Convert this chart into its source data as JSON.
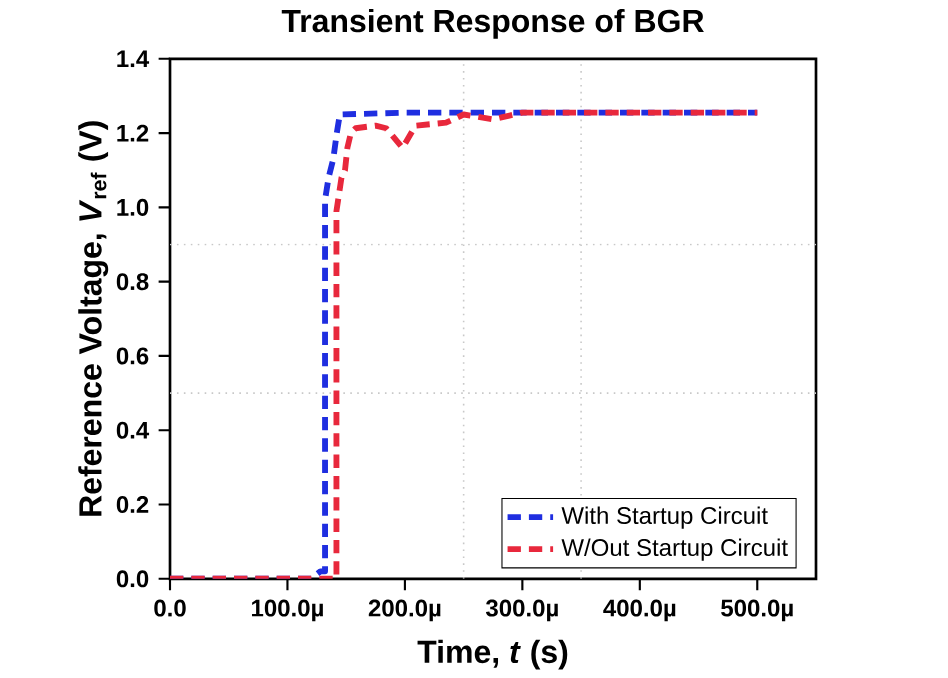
{
  "chart_data": {
    "type": "line",
    "title": "Transient Response of BGR",
    "xlabel": "Time, *t* (s)",
    "ylabel": "Reference Voltage, *V*$_{ref}$ (V)",
    "xlim": [
      0,
      550
    ],
    "ylim": [
      0,
      1.4
    ],
    "xticks": [
      {
        "value": 0,
        "label": "0.0"
      },
      {
        "value": 100,
        "label": "100.0µ"
      },
      {
        "value": 200,
        "label": "200.0µ"
      },
      {
        "value": 300,
        "label": "300.0µ"
      },
      {
        "value": 400,
        "label": "400.0µ"
      },
      {
        "value": 500,
        "label": "500.0µ"
      }
    ],
    "yticks": [
      {
        "value": 0,
        "label": "0.0"
      },
      {
        "value": 0.2,
        "label": "0.2"
      },
      {
        "value": 0.4,
        "label": "0.4"
      },
      {
        "value": 0.6,
        "label": "0.6"
      },
      {
        "value": 0.8,
        "label": "0.8"
      },
      {
        "value": 1.0,
        "label": "1.0"
      },
      {
        "value": 1.2,
        "label": "1.2"
      },
      {
        "value": 1.4,
        "label": "1.4"
      }
    ],
    "grid": false,
    "legend": "bottom right",
    "line_style": "dashed",
    "marker": "none",
    "ref_lines": [
      {
        "axis": "x",
        "value": 250,
        "label": null,
        "color": "#c8c8c8",
        "line_style": "dotted"
      },
      {
        "axis": "x",
        "value": 350,
        "label": null,
        "color": "#c8c8c8",
        "line_style": "dotted"
      },
      {
        "axis": "y",
        "value": 0.9,
        "label": null,
        "color": "#c8c8c8",
        "line_style": "dotted"
      },
      {
        "axis": "y",
        "value": 0.5,
        "label": null,
        "color": "#c8c8c8",
        "line_style": "dotted"
      }
    ],
    "series": [
      {
        "name": "With Startup Circuit",
        "color": "#1f2ee0",
        "x": [
          0,
          120,
          128,
          132,
          132,
          135,
          139,
          142,
          144.6,
          200,
          300,
          400,
          500
        ],
        "values": [
          0,
          0,
          0.02,
          0.02,
          1.02,
          1.08,
          1.13,
          1.2,
          1.25,
          1.255,
          1.255,
          1.255,
          1.255
        ]
      },
      {
        "name": "W/Out Startup Circuit",
        "color": "#e8283c",
        "x": [
          0,
          140,
          141.7,
          141.7,
          146,
          149,
          151,
          154,
          158,
          175,
          184,
          198,
          209,
          235,
          250,
          275,
          300,
          400,
          500
        ],
        "values": [
          0,
          0,
          0,
          0.99,
          1.08,
          1.1,
          1.16,
          1.2,
          1.213,
          1.22,
          1.213,
          1.16,
          1.22,
          1.228,
          1.25,
          1.237,
          1.255,
          1.255,
          1.255
        ]
      }
    ]
  }
}
